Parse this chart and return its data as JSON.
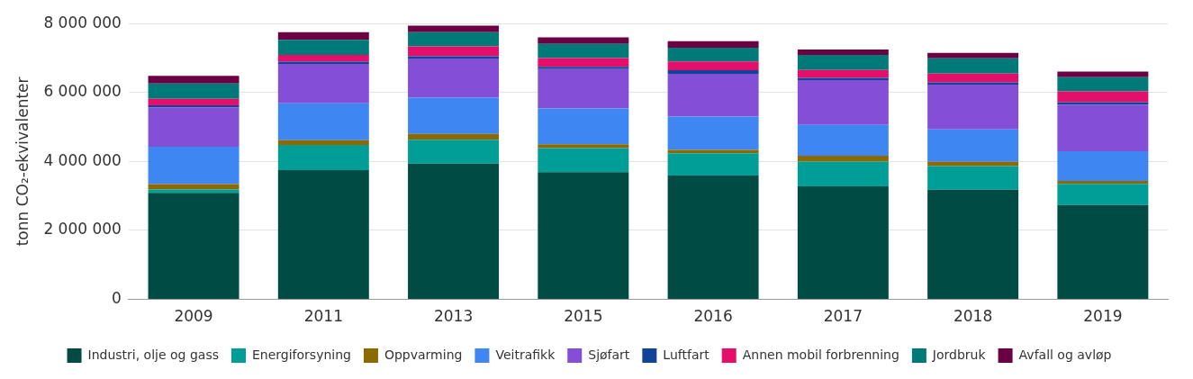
{
  "chart_data": {
    "type": "bar",
    "stacked": true,
    "ylabel": "tonn CO₂-ekvivalenter",
    "categories": [
      "2009",
      "2011",
      "2013",
      "2015",
      "2016",
      "2017",
      "2018",
      "2019"
    ],
    "series": [
      {
        "name": "Industri, olje og gass",
        "color": "#004c45",
        "values": [
          3090000,
          3750000,
          3940000,
          3690000,
          3590000,
          3280000,
          3180000,
          2740000
        ]
      },
      {
        "name": "Energiforsyning",
        "color": "#009e96",
        "values": [
          95000,
          730000,
          690000,
          700000,
          650000,
          720000,
          690000,
          610000
        ]
      },
      {
        "name": "Oppvarming",
        "color": "#8c6a00",
        "values": [
          160000,
          140000,
          170000,
          110000,
          95000,
          170000,
          120000,
          85000
        ]
      },
      {
        "name": "Veitrafikk",
        "color": "#3e86f2",
        "values": [
          1080000,
          1070000,
          1050000,
          1040000,
          970000,
          890000,
          940000,
          860000
        ]
      },
      {
        "name": "Sjøfart",
        "color": "#844fd6",
        "values": [
          1140000,
          1140000,
          1140000,
          1140000,
          1240000,
          1300000,
          1300000,
          1350000
        ]
      },
      {
        "name": "Luftfart",
        "color": "#0f4499",
        "values": [
          63000,
          63000,
          63000,
          63000,
          100000,
          63000,
          63000,
          74000
        ]
      },
      {
        "name": "Annen mobil forbrenning",
        "color": "#e30f6b",
        "values": [
          190000,
          200000,
          285000,
          254000,
          254000,
          233000,
          254000,
          317000
        ]
      },
      {
        "name": "Jordbruk",
        "color": "#007a78",
        "values": [
          444000,
          433000,
          412000,
          412000,
          402000,
          433000,
          444000,
          412000
        ]
      },
      {
        "name": "Avfall og avløp",
        "color": "#6b0043",
        "values": [
          222000,
          222000,
          190000,
          190000,
          190000,
          159000,
          159000,
          159000
        ]
      }
    ],
    "ylim": [
      0,
      8000000
    ],
    "yticks": [
      {
        "value": 0,
        "label": "0"
      },
      {
        "value": 2000000,
        "label": "2 000 000"
      },
      {
        "value": 4000000,
        "label": "4 000 000"
      },
      {
        "value": 6000000,
        "label": "6 000 000"
      },
      {
        "value": 8000000,
        "label": "8 000 000"
      }
    ],
    "grid": "y",
    "legend": "bottom"
  }
}
